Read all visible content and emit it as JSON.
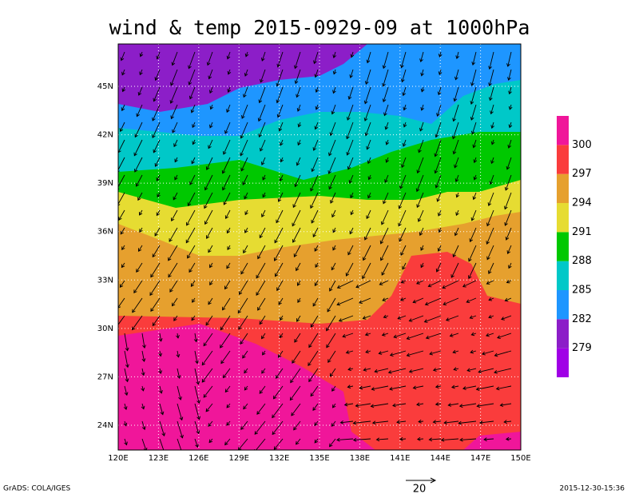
{
  "title": "wind & temp 2015-0929-09 at 1000hPa",
  "map": {
    "lon_labels": [
      "120E",
      "123E",
      "126E",
      "129E",
      "132E",
      "135E",
      "138E",
      "141E",
      "144E",
      "147E",
      "150E"
    ],
    "lat_labels": [
      "24N",
      "27N",
      "30N",
      "33N",
      "36N",
      "39N",
      "42N",
      "45N"
    ]
  },
  "colorbar": {
    "labels": [
      "279",
      "282",
      "285",
      "288",
      "291",
      "294",
      "297",
      "300"
    ],
    "colors": [
      "#a000e6",
      "#8c1ec8",
      "#1e96ff",
      "#00c8c8",
      "#00c800",
      "#e6dc32",
      "#e6a02e",
      "#fa3c3c",
      "#f0169a"
    ]
  },
  "vector_reference": "20",
  "footer": {
    "left": "GrADS: COLA/IGES",
    "right": "2015-12-30-15:36"
  }
}
